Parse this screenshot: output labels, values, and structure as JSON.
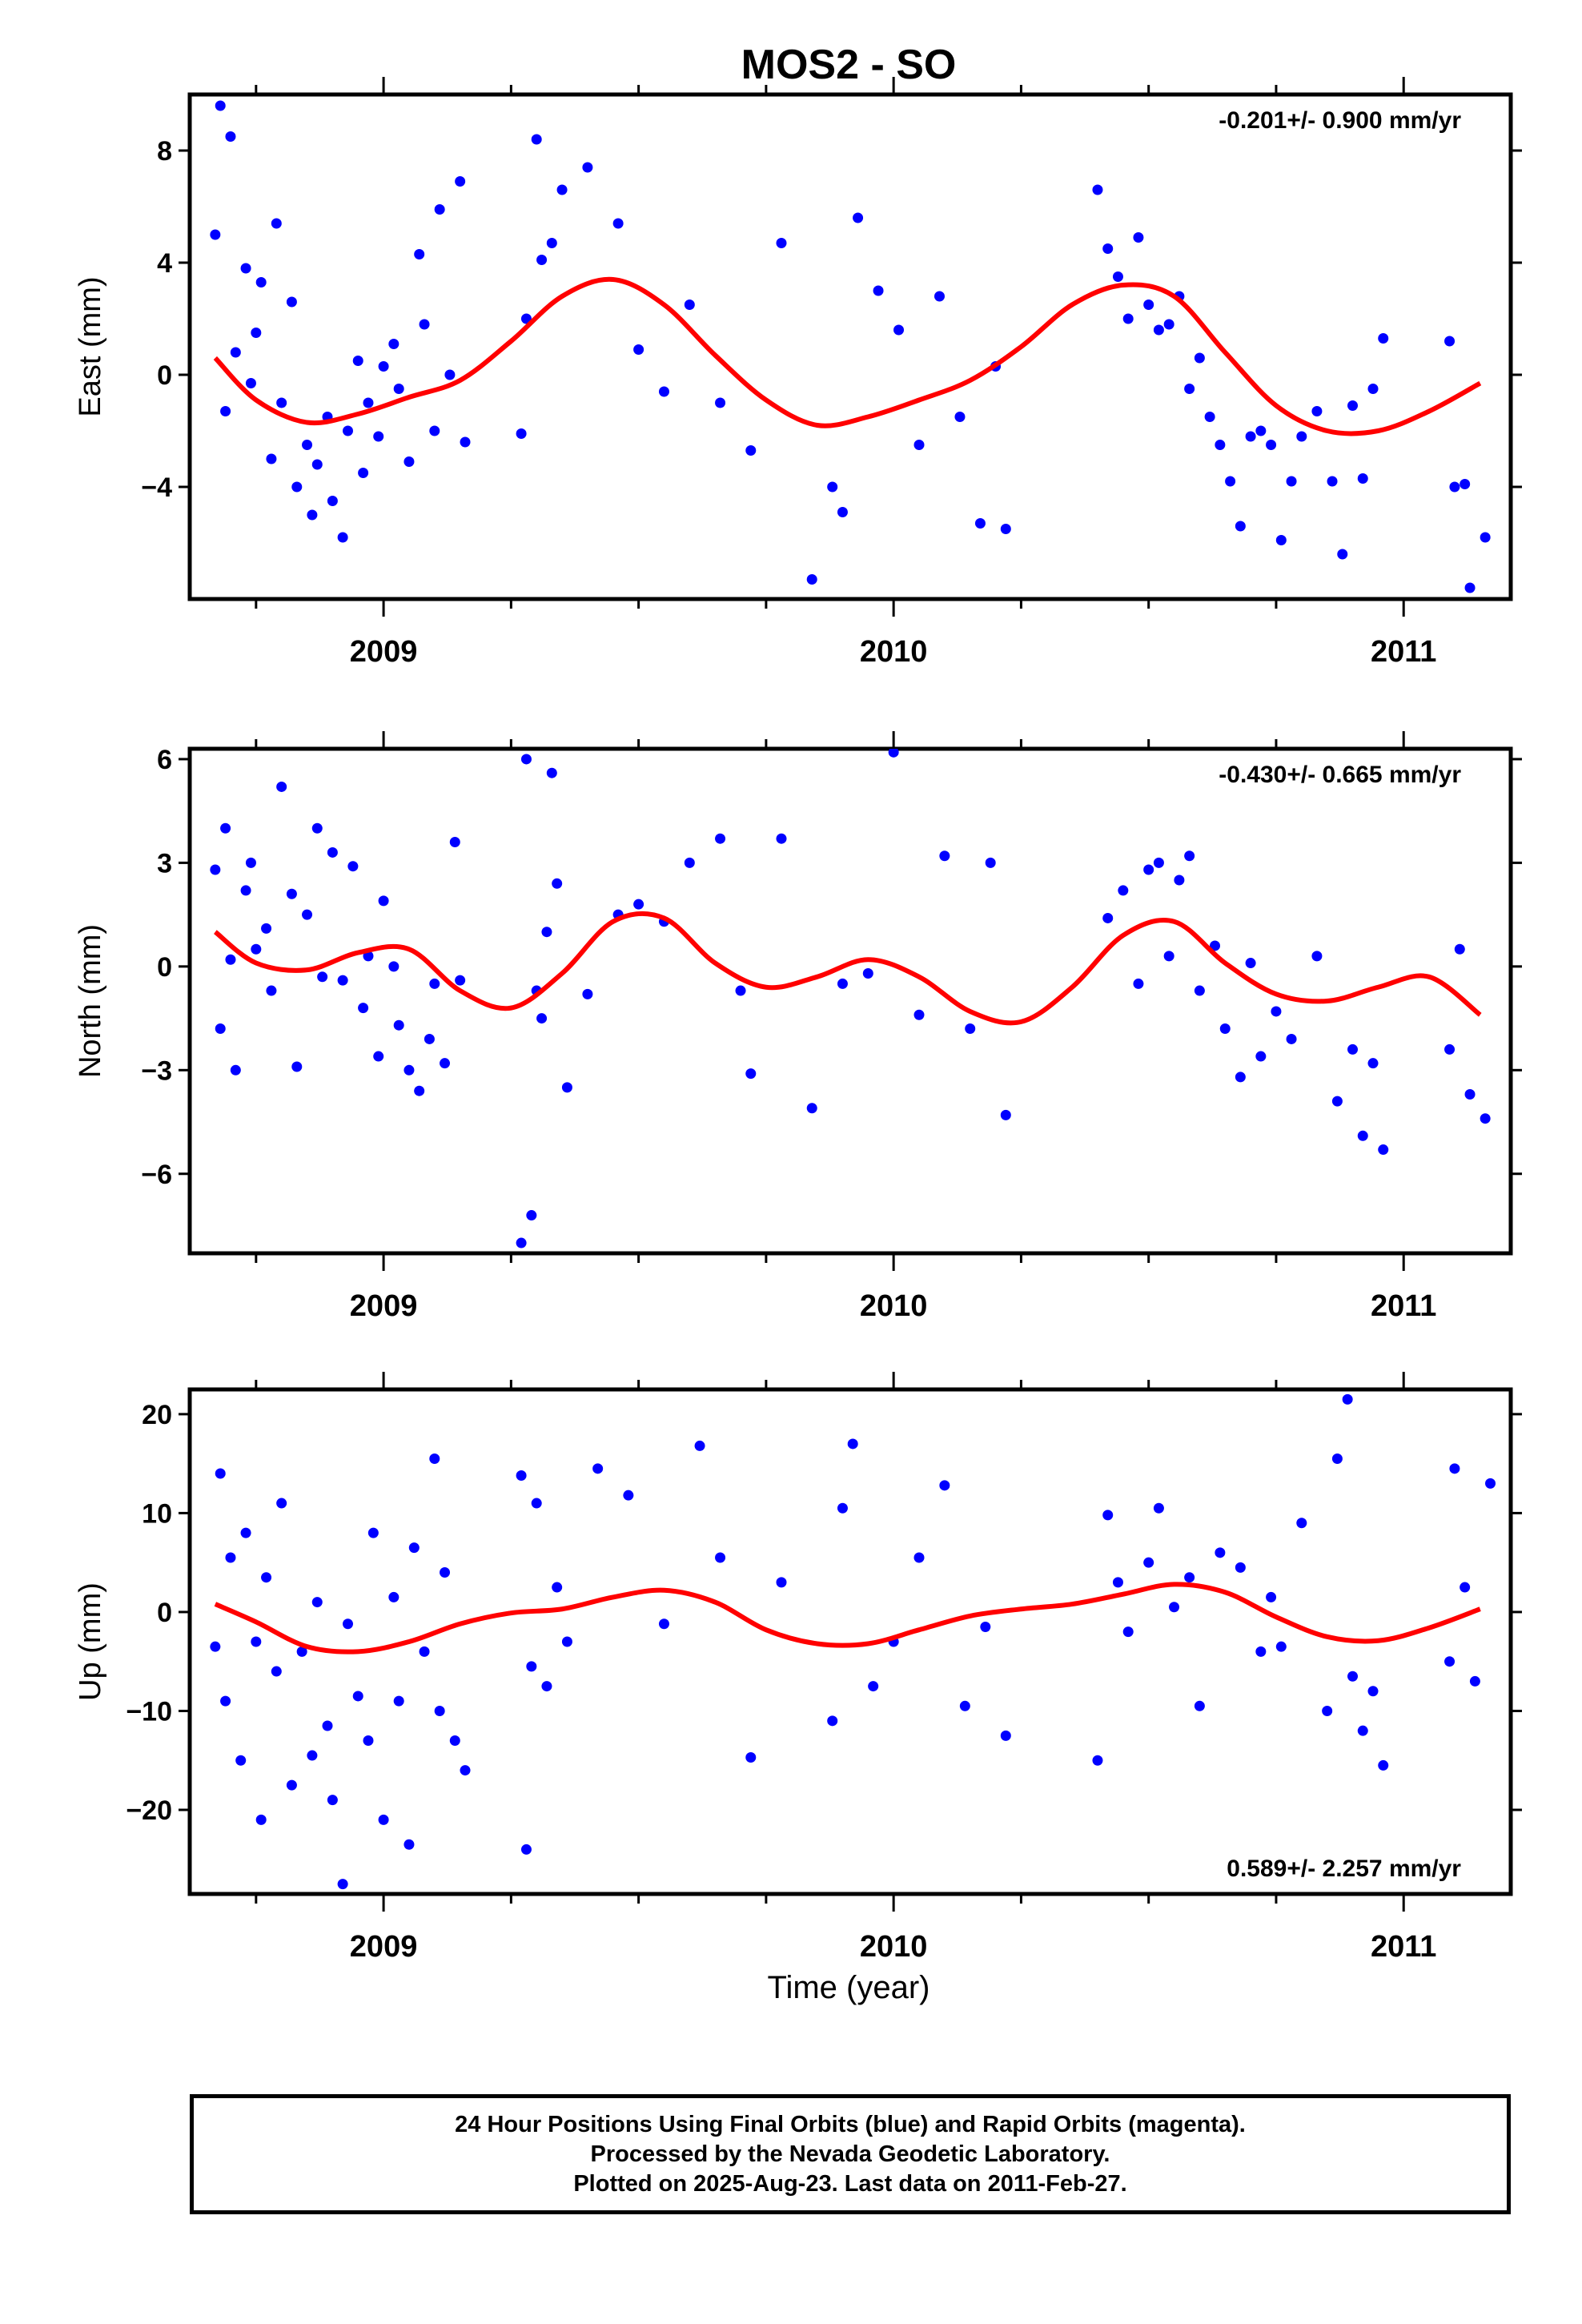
{
  "title": "MOS2 - SO",
  "colors": {
    "points": "#0000ff",
    "fit": "#ff0000",
    "axis": "#000000"
  },
  "chart_data": [
    {
      "type": "scatter",
      "ylabel": "East (mm)",
      "xlim": [
        2008.62,
        2011.21
      ],
      "ylim": [
        -8,
        10
      ],
      "yticks": [
        -4,
        0,
        4,
        8
      ],
      "xticks": [
        2009,
        2010,
        2011
      ],
      "rate_text": "-0.201+/- 0.900 mm/yr",
      "rate_position": "top-right",
      "series": [
        {
          "kind": "points",
          "x": [
            2008.67,
            2008.68,
            2008.69,
            2008.7,
            2008.71,
            2008.73,
            2008.74,
            2008.75,
            2008.76,
            2008.78,
            2008.79,
            2008.8,
            2008.82,
            2008.83,
            2008.85,
            2008.86,
            2008.87,
            2008.89,
            2008.9,
            2008.92,
            2008.93,
            2008.95,
            2008.96,
            2008.97,
            2008.99,
            2009.0,
            2009.02,
            2009.03,
            2009.05,
            2009.07,
            2009.08,
            2009.1,
            2009.11,
            2009.13,
            2009.15,
            2009.16,
            2009.27,
            2009.28,
            2009.3,
            2009.31,
            2009.33,
            2009.35,
            2009.4,
            2009.46,
            2009.5,
            2009.55,
            2009.6,
            2009.66,
            2009.72,
            2009.78,
            2009.84,
            2009.88,
            2009.9,
            2009.93,
            2009.97,
            2010.01,
            2010.05,
            2010.09,
            2010.13,
            2010.17,
            2010.2,
            2010.22,
            2010.4,
            2010.42,
            2010.44,
            2010.46,
            2010.48,
            2010.5,
            2010.52,
            2010.54,
            2010.56,
            2010.58,
            2010.6,
            2010.62,
            2010.64,
            2010.66,
            2010.68,
            2010.7,
            2010.72,
            2010.74,
            2010.76,
            2010.78,
            2010.8,
            2010.83,
            2010.86,
            2010.88,
            2010.9,
            2010.92,
            2010.94,
            2010.96,
            2011.09,
            2011.1,
            2011.12,
            2011.13,
            2011.16
          ],
          "y": [
            5.0,
            9.6,
            -1.3,
            8.5,
            0.8,
            3.8,
            -0.3,
            1.5,
            3.3,
            -3.0,
            5.4,
            -1.0,
            2.6,
            -4.0,
            -2.5,
            -5.0,
            -3.2,
            -1.5,
            -4.5,
            -5.8,
            -2.0,
            0.5,
            -3.5,
            -1.0,
            -2.2,
            0.3,
            1.1,
            -0.5,
            -3.1,
            4.3,
            1.8,
            -2.0,
            5.9,
            0.0,
            6.9,
            -2.4,
            -2.1,
            2.0,
            8.4,
            4.1,
            4.7,
            6.6,
            7.4,
            5.4,
            0.9,
            -0.6,
            2.5,
            -1.0,
            -2.7,
            4.7,
            -7.3,
            -4.0,
            -4.9,
            5.6,
            3.0,
            1.6,
            -2.5,
            2.8,
            -1.5,
            -5.3,
            0.3,
            -5.5,
            6.6,
            4.5,
            3.5,
            2.0,
            4.9,
            2.5,
            1.6,
            1.8,
            2.8,
            -0.5,
            0.6,
            -1.5,
            -2.5,
            -3.8,
            -5.4,
            -2.2,
            -2.0,
            -2.5,
            -5.9,
            -3.8,
            -2.2,
            -1.3,
            -3.8,
            -6.4,
            -1.1,
            -3.7,
            -0.5,
            1.3,
            1.2,
            -4.0,
            -3.9,
            -7.6,
            -5.8
          ]
        },
        {
          "kind": "fit",
          "x": [
            2008.67,
            2008.75,
            2008.85,
            2008.95,
            2009.05,
            2009.15,
            2009.25,
            2009.35,
            2009.45,
            2009.55,
            2009.65,
            2009.75,
            2009.85,
            2009.95,
            2010.05,
            2010.15,
            2010.25,
            2010.35,
            2010.45,
            2010.55,
            2010.65,
            2010.75,
            2010.85,
            2010.95,
            2011.05,
            2011.15
          ],
          "y": [
            0.6,
            -0.9,
            -1.7,
            -1.4,
            -0.8,
            -0.2,
            1.2,
            2.8,
            3.4,
            2.5,
            0.7,
            -0.9,
            -1.8,
            -1.5,
            -0.9,
            -0.2,
            1.0,
            2.5,
            3.2,
            2.8,
            0.8,
            -1.1,
            -2.0,
            -2.0,
            -1.3,
            -0.3
          ]
        }
      ]
    },
    {
      "type": "scatter",
      "ylabel": "North (mm)",
      "xlim": [
        2008.62,
        2011.21
      ],
      "ylim": [
        -8.3,
        6.3
      ],
      "yticks": [
        -6,
        -3,
        0,
        3,
        6
      ],
      "xticks": [
        2009,
        2010,
        2011
      ],
      "rate_text": "-0.430+/- 0.665 mm/yr",
      "rate_position": "top-right",
      "series": [
        {
          "kind": "points",
          "x": [
            2008.67,
            2008.68,
            2008.69,
            2008.7,
            2008.71,
            2008.73,
            2008.74,
            2008.75,
            2008.77,
            2008.78,
            2008.8,
            2008.82,
            2008.83,
            2008.85,
            2008.87,
            2008.88,
            2008.9,
            2008.92,
            2008.94,
            2008.96,
            2008.97,
            2008.99,
            2009.0,
            2009.02,
            2009.03,
            2009.05,
            2009.07,
            2009.09,
            2009.1,
            2009.12,
            2009.14,
            2009.15,
            2009.27,
            2009.28,
            2009.29,
            2009.3,
            2009.31,
            2009.32,
            2009.33,
            2009.34,
            2009.36,
            2009.4,
            2009.46,
            2009.5,
            2009.55,
            2009.6,
            2009.66,
            2009.7,
            2009.72,
            2009.78,
            2009.84,
            2009.9,
            2009.95,
            2010.0,
            2010.05,
            2010.1,
            2010.15,
            2010.19,
            2010.22,
            2010.42,
            2010.45,
            2010.48,
            2010.5,
            2010.52,
            2010.54,
            2010.56,
            2010.58,
            2010.6,
            2010.63,
            2010.65,
            2010.68,
            2010.7,
            2010.72,
            2010.75,
            2010.78,
            2010.83,
            2010.87,
            2010.9,
            2010.92,
            2010.94,
            2010.96,
            2011.09,
            2011.11,
            2011.13,
            2011.16
          ],
          "y": [
            2.8,
            -1.8,
            4.0,
            0.2,
            -3.0,
            2.2,
            3.0,
            0.5,
            1.1,
            -0.7,
            5.2,
            2.1,
            -2.9,
            1.5,
            4.0,
            -0.3,
            3.3,
            -0.4,
            2.9,
            -1.2,
            0.3,
            -2.6,
            1.9,
            0.0,
            -1.7,
            -3.0,
            -3.6,
            -2.1,
            -0.5,
            -2.8,
            3.6,
            -0.4,
            -8.0,
            6.0,
            -7.2,
            -0.7,
            -1.5,
            1.0,
            5.6,
            2.4,
            -3.5,
            -0.8,
            1.5,
            1.8,
            1.3,
            3.0,
            3.7,
            -0.7,
            -3.1,
            3.7,
            -4.1,
            -0.5,
            -0.2,
            6.2,
            -1.4,
            3.2,
            -1.8,
            3.0,
            -4.3,
            1.4,
            2.2,
            -0.5,
            2.8,
            3.0,
            0.3,
            2.5,
            3.2,
            -0.7,
            0.6,
            -1.8,
            -3.2,
            0.1,
            -2.6,
            -1.3,
            -2.1,
            0.3,
            -3.9,
            -2.4,
            -4.9,
            -2.8,
            -5.3,
            -2.4,
            0.5,
            -3.7,
            -4.4
          ]
        },
        {
          "kind": "fit",
          "x": [
            2008.67,
            2008.75,
            2008.85,
            2008.95,
            2009.05,
            2009.15,
            2009.25,
            2009.35,
            2009.45,
            2009.55,
            2009.65,
            2009.75,
            2009.85,
            2009.95,
            2010.05,
            2010.15,
            2010.25,
            2010.35,
            2010.45,
            2010.55,
            2010.65,
            2010.75,
            2010.85,
            2010.95,
            2011.05,
            2011.15
          ],
          "y": [
            1.0,
            0.1,
            -0.1,
            0.4,
            0.5,
            -0.7,
            -1.2,
            -0.2,
            1.3,
            1.4,
            0.1,
            -0.6,
            -0.3,
            0.2,
            -0.3,
            -1.3,
            -1.6,
            -0.6,
            0.9,
            1.3,
            0.1,
            -0.8,
            -1.0,
            -0.6,
            -0.3,
            -1.4
          ]
        }
      ]
    },
    {
      "type": "scatter",
      "ylabel": "Up (mm)",
      "xlim": [
        2008.62,
        2011.21
      ],
      "ylim": [
        -28.5,
        22.5
      ],
      "yticks": [
        -20,
        -10,
        0,
        10,
        20
      ],
      "xticks": [
        2009,
        2010,
        2011
      ],
      "rate_text": "0.589+/- 2.257 mm/yr",
      "rate_position": "bottom-right",
      "series": [
        {
          "kind": "points",
          "x": [
            2008.67,
            2008.68,
            2008.69,
            2008.7,
            2008.72,
            2008.73,
            2008.75,
            2008.76,
            2008.77,
            2008.79,
            2008.8,
            2008.82,
            2008.84,
            2008.86,
            2008.87,
            2008.89,
            2008.9,
            2008.92,
            2008.93,
            2008.95,
            2008.97,
            2008.98,
            2009.0,
            2009.02,
            2009.03,
            2009.05,
            2009.06,
            2009.08,
            2009.1,
            2009.11,
            2009.12,
            2009.14,
            2009.16,
            2009.27,
            2009.28,
            2009.29,
            2009.3,
            2009.32,
            2009.34,
            2009.36,
            2009.42,
            2009.48,
            2009.55,
            2009.62,
            2009.66,
            2009.72,
            2009.78,
            2009.88,
            2009.9,
            2009.92,
            2009.96,
            2010.0,
            2010.05,
            2010.1,
            2010.14,
            2010.18,
            2010.22,
            2010.4,
            2010.42,
            2010.44,
            2010.46,
            2010.5,
            2010.52,
            2010.55,
            2010.58,
            2010.6,
            2010.64,
            2010.68,
            2010.72,
            2010.74,
            2010.76,
            2010.8,
            2010.85,
            2010.87,
            2010.89,
            2010.9,
            2010.92,
            2010.94,
            2010.96,
            2011.09,
            2011.1,
            2011.12,
            2011.14,
            2011.17
          ],
          "y": [
            -3.5,
            14.0,
            -9.0,
            5.5,
            -15.0,
            8.0,
            -3.0,
            -21.0,
            3.5,
            -6.0,
            11.0,
            -17.5,
            -4.0,
            -14.5,
            1.0,
            -11.5,
            -19.0,
            -27.5,
            -1.2,
            -8.5,
            -13.0,
            8.0,
            -21.0,
            1.5,
            -9.0,
            -23.5,
            6.5,
            -4.0,
            15.5,
            -10.0,
            4.0,
            -13.0,
            -16.0,
            13.8,
            -24.0,
            -5.5,
            11.0,
            -7.5,
            2.5,
            -3.0,
            14.5,
            11.8,
            -1.2,
            16.8,
            5.5,
            -14.7,
            3.0,
            -11.0,
            10.5,
            17.0,
            -7.5,
            -3.0,
            5.5,
            12.8,
            -9.5,
            -1.5,
            -12.5,
            -15.0,
            9.8,
            3.0,
            -2.0,
            5.0,
            10.5,
            0.5,
            3.5,
            -9.5,
            6.0,
            4.5,
            -4.0,
            1.5,
            -3.5,
            9.0,
            -10.0,
            15.5,
            21.5,
            -6.5,
            -12.0,
            -8.0,
            -15.5,
            -5.0,
            14.5,
            2.5,
            -7.0,
            13.0
          ]
        },
        {
          "kind": "fit",
          "x": [
            2008.67,
            2008.75,
            2008.85,
            2008.95,
            2009.05,
            2009.15,
            2009.25,
            2009.35,
            2009.45,
            2009.55,
            2009.65,
            2009.75,
            2009.85,
            2009.95,
            2010.05,
            2010.15,
            2010.25,
            2010.35,
            2010.45,
            2010.55,
            2010.65,
            2010.75,
            2010.85,
            2010.95,
            2011.05,
            2011.15
          ],
          "y": [
            0.8,
            -1.0,
            -3.5,
            -4.0,
            -3.0,
            -1.2,
            -0.1,
            0.3,
            1.5,
            2.2,
            1.0,
            -1.8,
            -3.2,
            -3.2,
            -1.8,
            -0.4,
            0.3,
            0.8,
            1.8,
            2.8,
            2.0,
            -0.5,
            -2.5,
            -2.9,
            -1.6,
            0.3
          ]
        }
      ]
    }
  ],
  "xlabel": "Time (year)",
  "caption": {
    "line1": "24 Hour Positions Using Final Orbits (blue) and Rapid Orbits (magenta).",
    "line2": "Processed by the Nevada Geodetic Laboratory.",
    "line3": "Plotted on 2025-Aug-23. Last data on 2011-Feb-27."
  }
}
